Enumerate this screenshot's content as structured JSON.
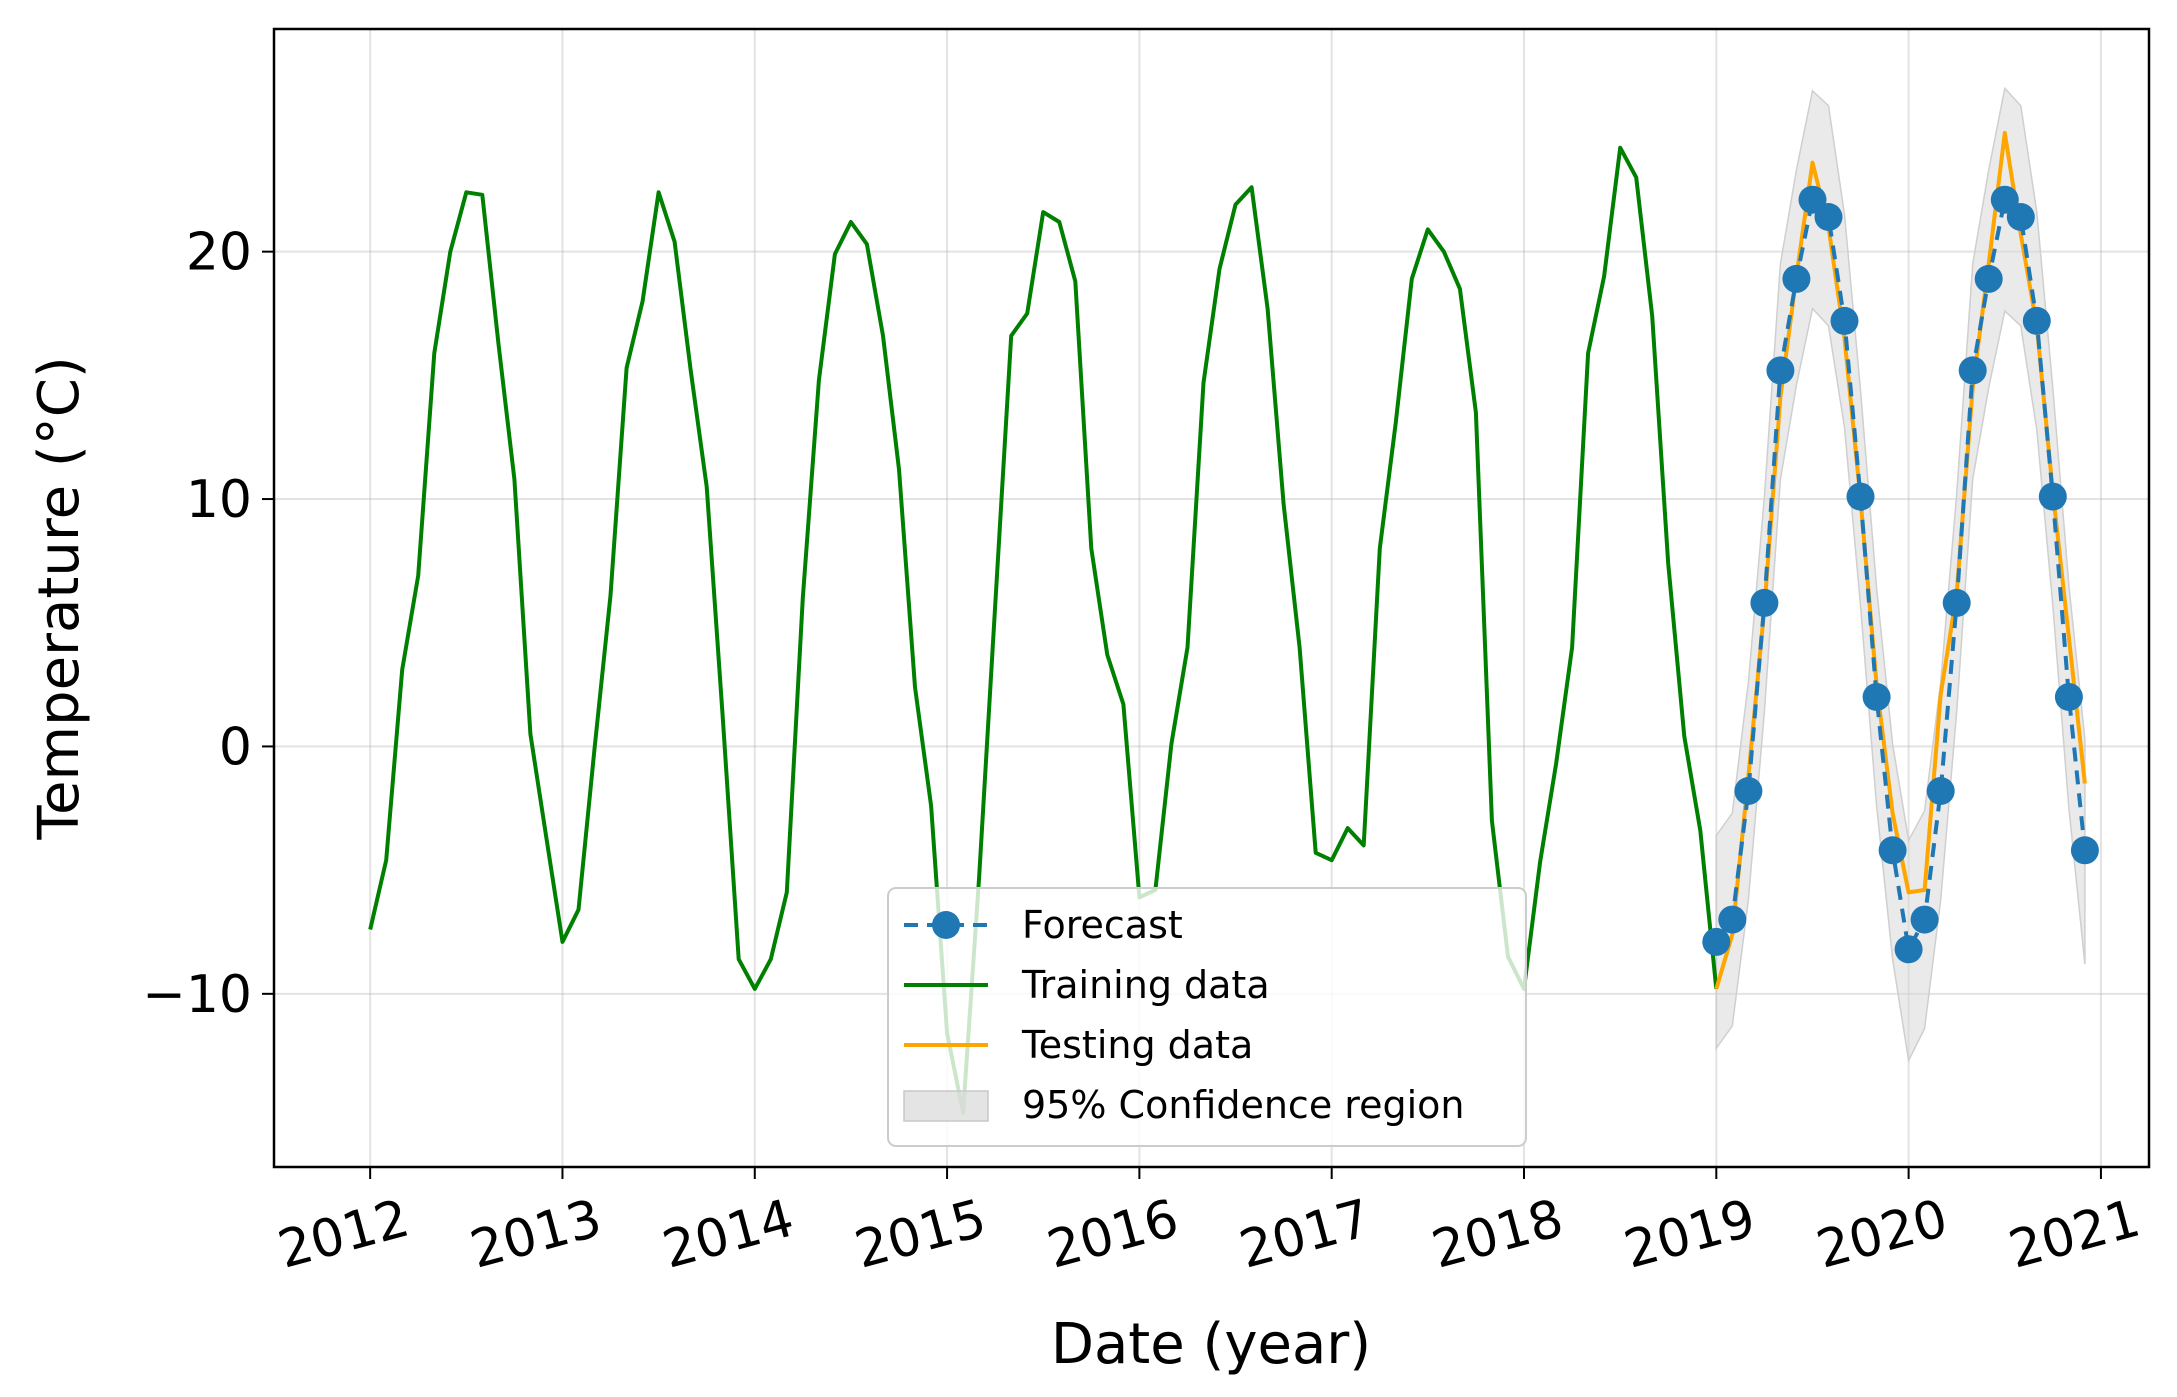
{
  "chart_data": {
    "type": "line",
    "title": "",
    "xlabel": "Date (year)",
    "ylabel": "Temperature (°C)",
    "xlim": [
      "2011-07-01",
      "2021-04-01"
    ],
    "ylim": [
      -17,
      29
    ],
    "grid": true,
    "legend_position": "bottom-center",
    "x_ticks": [
      "2012",
      "2013",
      "2014",
      "2015",
      "2016",
      "2017",
      "2018",
      "2019",
      "2020",
      "2021"
    ],
    "y_ticks": [
      20,
      10,
      0,
      -10
    ],
    "y_tick_labels": [
      "20",
      "10",
      "0",
      "−10"
    ],
    "colors": {
      "training": "#008000",
      "testing": "#ffa500",
      "forecast": "#1f77b4",
      "confidence": "#d9d9d9"
    },
    "series": [
      {
        "name": "Training data",
        "style": "solid",
        "color": "#008000",
        "points": [
          [
            "2012-01",
            -7.4
          ],
          [
            "2012-02",
            -4.6
          ],
          [
            "2012-03",
            3.1
          ],
          [
            "2012-04",
            6.9
          ],
          [
            "2012-05",
            15.9
          ],
          [
            "2012-06",
            20.0
          ],
          [
            "2012-07",
            22.4
          ],
          [
            "2012-08",
            22.3
          ],
          [
            "2012-09",
            16.3
          ],
          [
            "2012-10",
            10.8
          ],
          [
            "2012-11",
            0.5
          ],
          [
            "2012-12",
            -3.7
          ],
          [
            "2013-01",
            -7.9
          ],
          [
            "2013-02",
            -6.6
          ],
          [
            "2013-03",
            -0.1
          ],
          [
            "2013-04",
            6.1
          ],
          [
            "2013-05",
            15.3
          ],
          [
            "2013-06",
            18.0
          ],
          [
            "2013-07",
            22.4
          ],
          [
            "2013-08",
            20.4
          ],
          [
            "2013-09",
            15.2
          ],
          [
            "2013-10",
            10.5
          ],
          [
            "2013-11",
            1.2
          ],
          [
            "2013-12",
            -8.6
          ],
          [
            "2014-01",
            -9.8
          ],
          [
            "2014-02",
            -8.6
          ],
          [
            "2014-03",
            -5.9
          ],
          [
            "2014-04",
            6.0
          ],
          [
            "2014-05",
            14.8
          ],
          [
            "2014-06",
            19.9
          ],
          [
            "2014-07",
            21.2
          ],
          [
            "2014-08",
            20.3
          ],
          [
            "2014-09",
            16.6
          ],
          [
            "2014-10",
            11.2
          ],
          [
            "2014-11",
            2.4
          ],
          [
            "2014-12",
            -2.4
          ],
          [
            "2015-01",
            -11.6
          ],
          [
            "2015-02",
            -14.8
          ],
          [
            "2015-03",
            -5.3
          ],
          [
            "2015-04",
            5.7
          ],
          [
            "2015-05",
            16.6
          ],
          [
            "2015-06",
            17.5
          ],
          [
            "2015-07",
            21.6
          ],
          [
            "2015-08",
            21.2
          ],
          [
            "2015-09",
            18.8
          ],
          [
            "2015-10",
            8.0
          ],
          [
            "2015-11",
            3.7
          ],
          [
            "2015-12",
            1.7
          ],
          [
            "2016-01",
            -6.1
          ],
          [
            "2016-02",
            -5.8
          ],
          [
            "2016-03",
            0.1
          ],
          [
            "2016-04",
            4.0
          ],
          [
            "2016-05",
            14.7
          ],
          [
            "2016-06",
            19.3
          ],
          [
            "2016-07",
            21.9
          ],
          [
            "2016-08",
            22.6
          ],
          [
            "2016-09",
            17.7
          ],
          [
            "2016-10",
            9.8
          ],
          [
            "2016-11",
            4.0
          ],
          [
            "2016-12",
            -4.3
          ],
          [
            "2017-01",
            -4.6
          ],
          [
            "2017-02",
            -3.3
          ],
          [
            "2017-03",
            -4.0
          ],
          [
            "2017-04",
            8.0
          ],
          [
            "2017-05",
            13.1
          ],
          [
            "2017-06",
            18.9
          ],
          [
            "2017-07",
            20.9
          ],
          [
            "2017-08",
            20.0
          ],
          [
            "2017-09",
            18.5
          ],
          [
            "2017-10",
            13.5
          ],
          [
            "2017-11",
            -3.0
          ],
          [
            "2017-12",
            -8.5
          ],
          [
            "2018-01",
            -9.8
          ],
          [
            "2018-02",
            -4.7
          ],
          [
            "2018-03",
            -0.7
          ],
          [
            "2018-04",
            4.0
          ],
          [
            "2018-05",
            15.9
          ],
          [
            "2018-06",
            19.0
          ],
          [
            "2018-07",
            24.2
          ],
          [
            "2018-08",
            23.0
          ],
          [
            "2018-09",
            17.4
          ],
          [
            "2018-10",
            7.4
          ],
          [
            "2018-11",
            0.4
          ],
          [
            "2018-12",
            -3.4
          ],
          [
            "2019-01",
            -9.8
          ]
        ]
      },
      {
        "name": "Testing data",
        "style": "solid",
        "color": "#ffa500",
        "points": [
          [
            "2019-01",
            -9.8
          ],
          [
            "2019-02",
            -7.6
          ],
          [
            "2019-03",
            -1.2
          ],
          [
            "2019-04",
            5.6
          ],
          [
            "2019-05",
            14.1
          ],
          [
            "2019-06",
            19.0
          ],
          [
            "2019-07",
            23.6
          ],
          [
            "2019-08",
            21.0
          ],
          [
            "2019-09",
            16.5
          ],
          [
            "2019-10",
            10.0
          ],
          [
            "2019-11",
            2.5
          ],
          [
            "2019-12",
            -2.7
          ],
          [
            "2020-01",
            -5.9
          ],
          [
            "2020-02",
            -5.8
          ],
          [
            "2020-03",
            2.1
          ],
          [
            "2020-04",
            6.2
          ],
          [
            "2020-05",
            14.5
          ],
          [
            "2020-06",
            19.5
          ],
          [
            "2020-07",
            24.8
          ],
          [
            "2020-08",
            20.7
          ],
          [
            "2020-09",
            17.0
          ],
          [
            "2020-10",
            10.3
          ],
          [
            "2020-11",
            4.4
          ],
          [
            "2020-12",
            -1.5
          ]
        ]
      },
      {
        "name": "Forecast",
        "style": "dashed-with-markers",
        "color": "#1f77b4",
        "points": [
          [
            "2019-01",
            -7.9
          ],
          [
            "2019-02",
            -7.0
          ],
          [
            "2019-03",
            -1.8
          ],
          [
            "2019-04",
            5.8
          ],
          [
            "2019-05",
            15.2
          ],
          [
            "2019-06",
            18.9
          ],
          [
            "2019-07",
            22.1
          ],
          [
            "2019-08",
            21.4
          ],
          [
            "2019-09",
            17.2
          ],
          [
            "2019-10",
            10.1
          ],
          [
            "2019-11",
            2.0
          ],
          [
            "2019-12",
            -4.2
          ],
          [
            "2020-01",
            -8.2
          ],
          [
            "2020-02",
            -7.0
          ],
          [
            "2020-03",
            -1.8
          ],
          [
            "2020-04",
            5.8
          ],
          [
            "2020-05",
            15.2
          ],
          [
            "2020-06",
            18.9
          ],
          [
            "2020-07",
            22.1
          ],
          [
            "2020-08",
            21.4
          ],
          [
            "2020-09",
            17.2
          ],
          [
            "2020-10",
            10.1
          ],
          [
            "2020-11",
            2.0
          ],
          [
            "2020-12",
            -4.2
          ]
        ]
      }
    ],
    "confidence_band": {
      "name": "95% Confidence region",
      "color": "#d9d9d9",
      "points": [
        [
          "2019-01",
          -12.2,
          -3.6
        ],
        [
          "2019-02",
          -11.3,
          -2.7
        ],
        [
          "2019-03",
          -6.2,
          2.6
        ],
        [
          "2019-04",
          1.4,
          10.1
        ],
        [
          "2019-05",
          10.8,
          19.5
        ],
        [
          "2019-06",
          14.6,
          23.3
        ],
        [
          "2019-07",
          17.7,
          26.5
        ],
        [
          "2019-08",
          17.0,
          25.9
        ],
        [
          "2019-09",
          12.9,
          21.5
        ],
        [
          "2019-10",
          5.7,
          14.4
        ],
        [
          "2019-11",
          -2.4,
          6.4
        ],
        [
          "2019-12",
          -8.6,
          0.1
        ],
        [
          "2020-01",
          -12.7,
          -3.8
        ],
        [
          "2020-02",
          -11.4,
          -2.6
        ],
        [
          "2020-03",
          -6.2,
          2.6
        ],
        [
          "2020-04",
          1.4,
          10.2
        ],
        [
          "2020-05",
          10.8,
          19.5
        ],
        [
          "2020-06",
          14.5,
          23.3
        ],
        [
          "2020-07",
          17.6,
          26.6
        ],
        [
          "2020-08",
          17.0,
          25.9
        ],
        [
          "2020-09",
          12.8,
          21.6
        ],
        [
          "2020-10",
          5.7,
          14.5
        ],
        [
          "2020-11",
          -2.5,
          6.5
        ],
        [
          "2020-12",
          -8.8,
          0.3
        ]
      ]
    }
  }
}
